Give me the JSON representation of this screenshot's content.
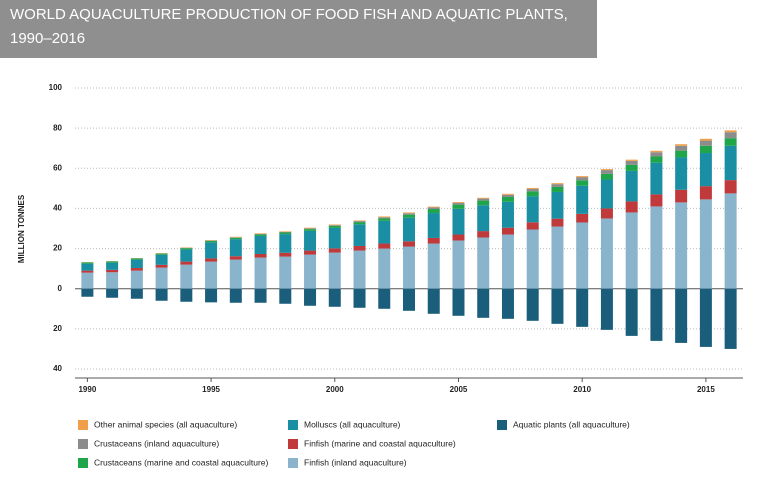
{
  "chart_data": {
    "type": "bar",
    "title": [
      "WORLD AQUACULTURE PRODUCTION OF FOOD FISH AND AQUATIC PLANTS,",
      "1990–2016"
    ],
    "y_label": "MILLION TONNES",
    "categories": [
      "1990",
      null,
      null,
      null,
      null,
      "1995",
      null,
      null,
      null,
      null,
      "2000",
      null,
      null,
      null,
      null,
      "2005",
      null,
      null,
      null,
      null,
      "2010",
      null,
      null,
      null,
      null,
      "2015",
      null
    ],
    "series": [
      {
        "name": "Finfish (inland aquaculture)",
        "color": "#8ab4cc",
        "values": [
          8,
          8.2,
          9,
          10.5,
          12,
          13.5,
          14.5,
          15.5,
          16,
          17,
          18,
          19,
          20,
          21,
          22.5,
          24,
          25.5,
          27,
          29.5,
          31,
          33,
          35,
          38,
          41,
          43,
          44.5,
          47.5
        ]
      },
      {
        "name": "Finfish (marine and coastal aquaculture)",
        "color": "#c0393b",
        "values": [
          1,
          1.2,
          1.3,
          1.4,
          1.5,
          1.6,
          1.7,
          1.8,
          1.9,
          2,
          2.1,
          2.3,
          2.5,
          2.6,
          2.8,
          3,
          3.2,
          3.4,
          3.6,
          3.9,
          4.3,
          5,
          5.5,
          6,
          6.3,
          6.6,
          6.6
        ]
      },
      {
        "name": "Molluscs (all aquaculture)",
        "color": "#1a8fa3",
        "values": [
          3.5,
          3.6,
          4.2,
          5,
          6,
          8,
          8.5,
          9,
          9.3,
          9.8,
          10.2,
          10.8,
          11.3,
          11.8,
          12.4,
          12.8,
          12.9,
          12.9,
          12.9,
          13.3,
          14,
          14.4,
          15.2,
          15.8,
          16.1,
          16.5,
          17.1
        ]
      },
      {
        "name": "Crustaceans (marine and coastal aquaculture)",
        "color": "#1fa64a",
        "values": [
          0.6,
          0.6,
          0.6,
          0.6,
          0.7,
          0.7,
          0.7,
          0.7,
          0.8,
          0.9,
          1,
          1.1,
          1.2,
          1.5,
          2,
          2.1,
          2.3,
          2.4,
          2.5,
          2.5,
          2.7,
          2.8,
          3,
          3.1,
          3.4,
          3.6,
          3.8
        ]
      },
      {
        "name": "Crustaceans (inland aquaculture)",
        "color": "#8c8c8c",
        "values": [
          0.1,
          0.1,
          0.1,
          0.1,
          0.2,
          0.2,
          0.2,
          0.3,
          0.3,
          0.4,
          0.4,
          0.5,
          0.6,
          0.7,
          0.8,
          0.9,
          1,
          1.1,
          1.2,
          1.4,
          1.6,
          1.9,
          2,
          2.1,
          2.4,
          2.6,
          3
        ]
      },
      {
        "name": "Other animal species (all aquaculture)",
        "color": "#f0a04b",
        "values": [
          0.1,
          0.1,
          0.1,
          0.2,
          0.2,
          0.2,
          0.3,
          0.3,
          0.3,
          0.3,
          0.3,
          0.3,
          0.4,
          0.4,
          0.4,
          0.4,
          0.4,
          0.5,
          0.5,
          0.5,
          0.5,
          0.5,
          0.6,
          0.7,
          0.8,
          0.9,
          0.9
        ]
      },
      {
        "name": "Aquatic plants (all aquaculture)",
        "color": "#1b5e7b",
        "values": [
          -4,
          -4.5,
          -5,
          -6,
          -6.5,
          -6.8,
          -7,
          -7,
          -7.5,
          -8.5,
          -9,
          -9.5,
          -10,
          -11,
          -12.5,
          -13.5,
          -14.5,
          -15,
          -16,
          -17.5,
          -19,
          -20.5,
          -23.5,
          -26,
          -27,
          -29,
          -30
        ]
      }
    ],
    "ylim": [
      -40,
      100
    ],
    "yticks": [
      {
        "value": -40,
        "label": "40"
      },
      {
        "value": -20,
        "label": "20"
      },
      0,
      20,
      40,
      60,
      80,
      100
    ],
    "grid": true
  }
}
